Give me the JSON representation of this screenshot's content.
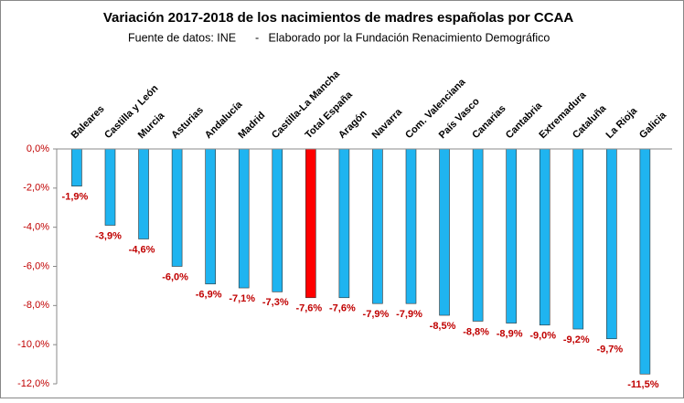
{
  "chart_data": {
    "type": "bar",
    "title": "Variación  2017-2018 de los nacimientos de madres españolas  por CCAA",
    "subtitle": "Fuente de datos: INE      -   Elaborado por la Fundación Renacimiento Demográfico",
    "categories": [
      "Baleares",
      "Castilla y León",
      "Murcia",
      "Asturias",
      "Andalucía",
      "Madrid",
      "Castilla-La Mancha",
      "Total España",
      "Aragón",
      "Navarra",
      "Com. Valenciana",
      "País Vasco",
      "Canarias",
      "Cantabria",
      "Extremadura",
      "Cataluña",
      "La Rioja",
      "Galicia"
    ],
    "values": [
      -1.9,
      -3.9,
      -4.6,
      -6.0,
      -6.9,
      -7.1,
      -7.3,
      -7.6,
      -7.6,
      -7.9,
      -7.9,
      -8.5,
      -8.8,
      -8.9,
      -9.0,
      -9.2,
      -9.7,
      -11.5
    ],
    "value_labels": [
      "-1,9%",
      "-3,9%",
      "-4,6%",
      "-6,0%",
      "-6,9%",
      "-7,1%",
      "-7,3%",
      "-7,6%",
      "-7,6%",
      "-7,9%",
      "-7,9%",
      "-8,5%",
      "-8,8%",
      "-8,9%",
      "-9,0%",
      "-9,2%",
      "-9,7%",
      "-11,5%"
    ],
    "colors": [
      "#1fb4f0",
      "#1fb4f0",
      "#1fb4f0",
      "#1fb4f0",
      "#1fb4f0",
      "#1fb4f0",
      "#1fb4f0",
      "#ff0000",
      "#1fb4f0",
      "#1fb4f0",
      "#1fb4f0",
      "#1fb4f0",
      "#1fb4f0",
      "#1fb4f0",
      "#1fb4f0",
      "#1fb4f0",
      "#1fb4f0",
      "#1fb4f0"
    ],
    "ylim": [
      -12,
      0
    ],
    "yticks": [
      {
        "value": 0,
        "label": "0,0%"
      },
      {
        "value": -2,
        "label": "-2,0%"
      },
      {
        "value": -4,
        "label": "-4,0%"
      },
      {
        "value": -6,
        "label": "-6,0%"
      },
      {
        "value": -8,
        "label": "-8,0%"
      },
      {
        "value": -10,
        "label": "-10,0%"
      },
      {
        "value": -12,
        "label": "-12,0%"
      }
    ],
    "grid": false
  }
}
